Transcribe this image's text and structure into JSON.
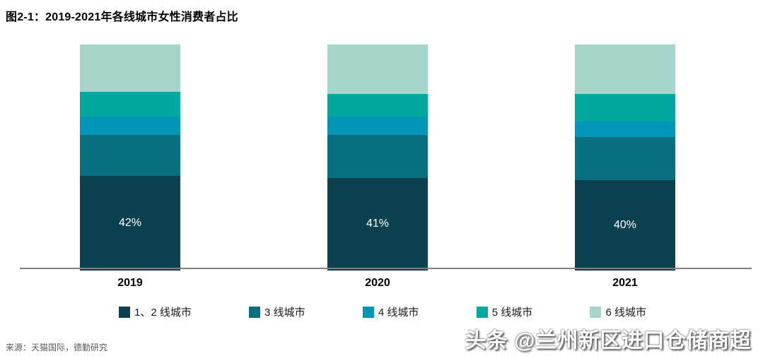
{
  "title": "图2-1：2019-2021年各线城市女性消费者占比",
  "source": "来源：天猫国际，德勤研究",
  "watermark": "头条 @兰州新区进口仓储商超",
  "colors": {
    "tier12": "#0c4150",
    "tier3": "#087080",
    "tier4": "#0096b8",
    "tier5": "#00a8a0",
    "tier6": "#a3d5cb",
    "axis": "#808080",
    "bar_label": "#ffffff"
  },
  "chart_data": {
    "type": "bar",
    "stacked": true,
    "title": "图2-1：2019-2021年各线城市女性消费者占比",
    "categories": [
      "2019",
      "2020",
      "2021"
    ],
    "series": [
      {
        "name": "1、2 线城市",
        "color_key": "tier12",
        "values": [
          42,
          41,
          40
        ],
        "labels": [
          "42%",
          "41%",
          "40%"
        ]
      },
      {
        "name": "3 线城市",
        "color_key": "tier3",
        "values": [
          18,
          19,
          19
        ]
      },
      {
        "name": "4 线城市",
        "color_key": "tier4",
        "values": [
          8,
          8,
          7
        ]
      },
      {
        "name": "5 线城市",
        "color_key": "tier5",
        "values": [
          11,
          10,
          12
        ]
      },
      {
        "name": "6 线城市",
        "color_key": "tier6",
        "values": [
          21,
          22,
          22
        ]
      }
    ],
    "xlabel": "",
    "ylabel": "",
    "ylim": [
      0,
      100
    ],
    "grid": false,
    "legend_position": "bottom",
    "visible_value_labels": [
      "42%",
      "41%",
      "40%"
    ]
  }
}
